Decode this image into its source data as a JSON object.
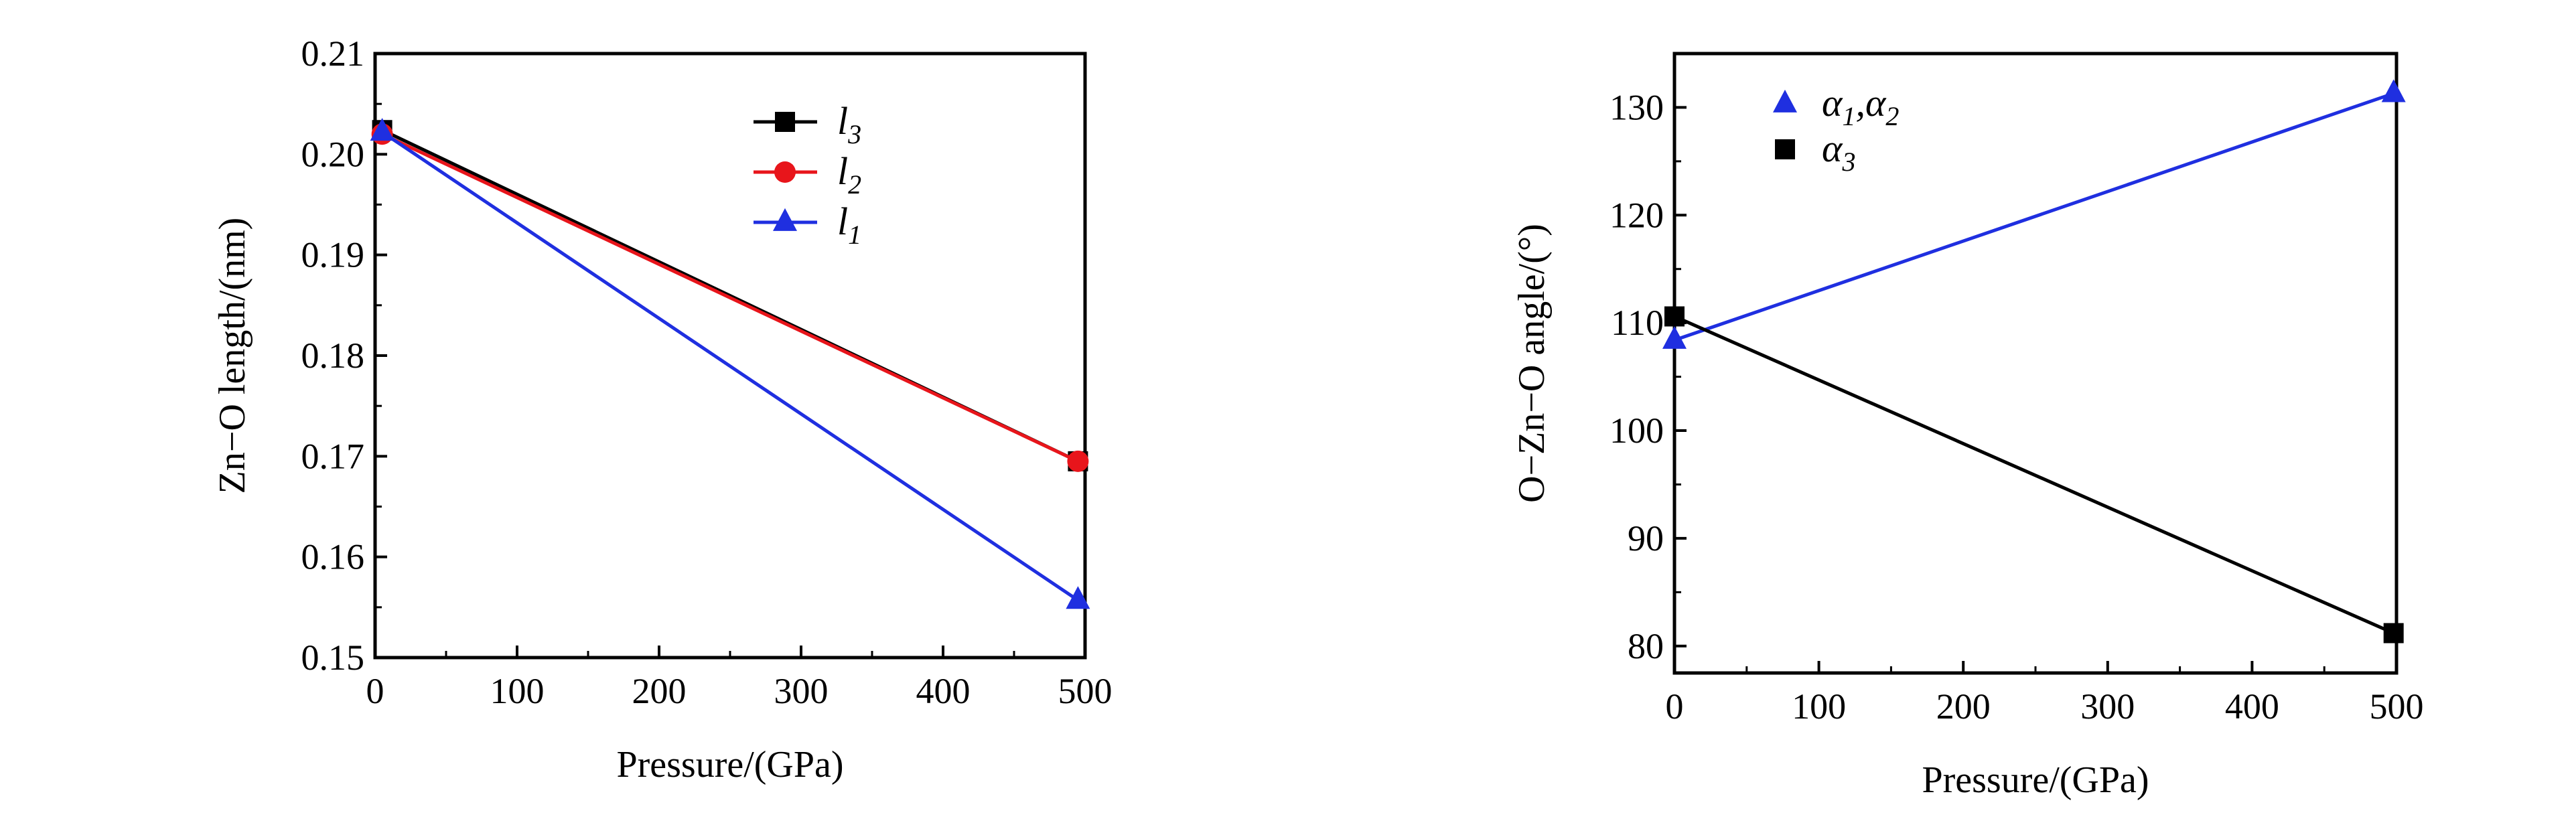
{
  "chart_data": [
    {
      "type": "line",
      "xlabel": "Pressure/(GPa)",
      "ylabel": "Zn−O length/(nm)",
      "xlim": [
        0,
        500
      ],
      "ylim": [
        0.15,
        0.21
      ],
      "xticks": [
        "0",
        "100",
        "200",
        "300",
        "400",
        "500"
      ],
      "yticks": [
        "0.15",
        "0.16",
        "0.17",
        "0.18",
        "0.19",
        "0.20",
        "0.21"
      ],
      "legend_position": "top-right",
      "series": [
        {
          "name": "l",
          "sub": "3",
          "marker": "square",
          "color": "#000000",
          "x": [
            5,
            495
          ],
          "y": [
            0.2024,
            0.1695
          ]
        },
        {
          "name": "l",
          "sub": "2",
          "marker": "circle",
          "color": "#e8151b",
          "x": [
            5,
            495
          ],
          "y": [
            0.202,
            0.1695
          ]
        },
        {
          "name": "l",
          "sub": "1",
          "marker": "triangle",
          "color": "#1f2fe0",
          "x": [
            5,
            495
          ],
          "y": [
            0.2022,
            0.1557
          ]
        }
      ]
    },
    {
      "type": "line",
      "xlabel": "Pressure/(GPa)",
      "ylabel": "O−Zn−O angle/(°)",
      "xlim": [
        0,
        500
      ],
      "ylim": [
        77.5,
        135
      ],
      "xticks": [
        "0",
        "100",
        "200",
        "300",
        "400",
        "500"
      ],
      "yticks": [
        "80",
        "90",
        "100",
        "110",
        "120",
        "130"
      ],
      "legend_position": "top-left",
      "series": [
        {
          "name": "α",
          "sub": "1",
          "name2": "α",
          "sub2": "2",
          "marker": "triangle",
          "color": "#1f2fe0",
          "x": [
            0,
            498
          ],
          "y": [
            108.4,
            131.3
          ]
        },
        {
          "name": "α",
          "sub": "3",
          "marker": "square",
          "color": "#000000",
          "x": [
            0,
            498
          ],
          "y": [
            110.6,
            81.2
          ]
        }
      ]
    }
  ]
}
